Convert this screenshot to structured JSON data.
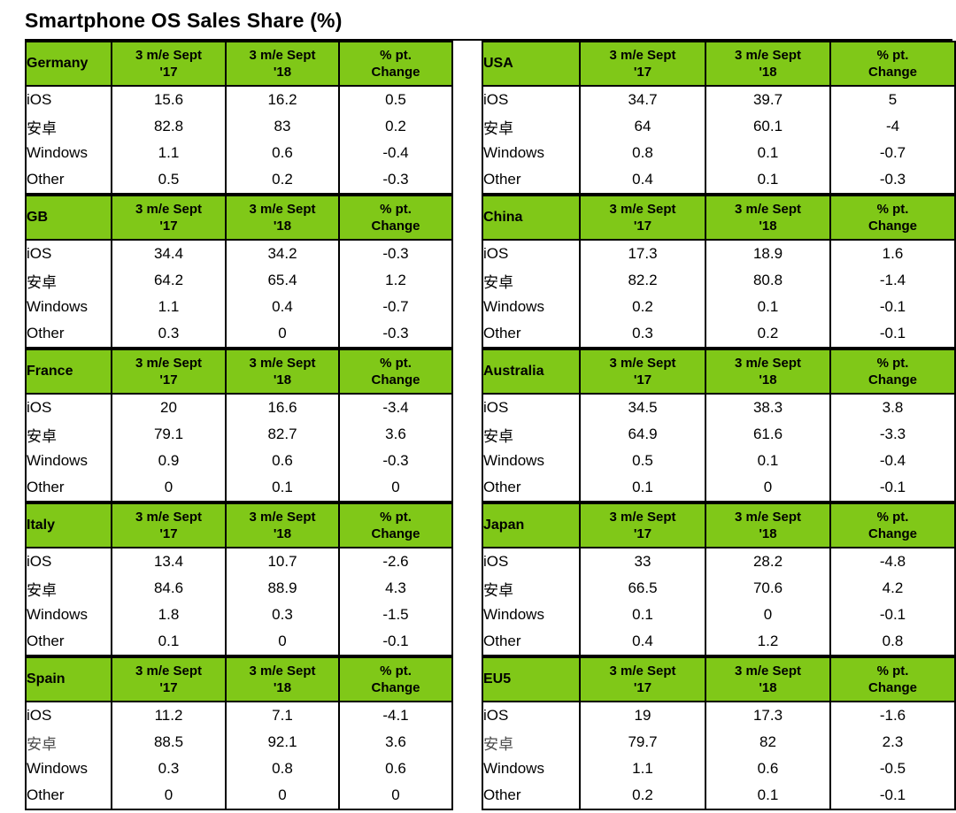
{
  "title": "Smartphone OS Sales Share (%)",
  "colors": {
    "header_green": "#80C818",
    "border": "#000000",
    "text": "#000000"
  },
  "column_headers": {
    "c17": "3 m/e Sept\n'17",
    "c18": "3 m/e Sept\n'18",
    "chg": "% pt.\nChange"
  },
  "sections": [
    {
      "country": "Germany",
      "side": "left",
      "rows": [
        {
          "os": "iOS",
          "y17": "15.6",
          "y18": "16.2",
          "change": "0.5"
        },
        {
          "os": "安卓",
          "y17": "82.8",
          "y18": "83",
          "change": "0.2"
        },
        {
          "os": "Windows",
          "y17": "1.1",
          "y18": "0.6",
          "change": "-0.4"
        },
        {
          "os": "Other",
          "y17": "0.5",
          "y18": "0.2",
          "change": "-0.3"
        }
      ]
    },
    {
      "country": "GB",
      "side": "left",
      "rows": [
        {
          "os": "iOS",
          "y17": "34.4",
          "y18": "34.2",
          "change": "-0.3"
        },
        {
          "os": "安卓",
          "y17": "64.2",
          "y18": "65.4",
          "change": "1.2"
        },
        {
          "os": "Windows",
          "y17": "1.1",
          "y18": "0.4",
          "change": "-0.7"
        },
        {
          "os": "Other",
          "y17": "0.3",
          "y18": "0",
          "change": "-0.3"
        }
      ]
    },
    {
      "country": "France",
      "side": "left",
      "rows": [
        {
          "os": "iOS",
          "y17": "20",
          "y18": "16.6",
          "change": "-3.4"
        },
        {
          "os": "安卓",
          "y17": "79.1",
          "y18": "82.7",
          "change": "3.6"
        },
        {
          "os": "Windows",
          "y17": "0.9",
          "y18": "0.6",
          "change": "-0.3"
        },
        {
          "os": "Other",
          "y17": "0",
          "y18": "0.1",
          "change": "0"
        }
      ]
    },
    {
      "country": "Italy",
      "side": "left",
      "rows": [
        {
          "os": "iOS",
          "y17": "13.4",
          "y18": "10.7",
          "change": "-2.6"
        },
        {
          "os": "安卓",
          "y17": "84.6",
          "y18": "88.9",
          "change": "4.3"
        },
        {
          "os": "Windows",
          "y17": "1.8",
          "y18": "0.3",
          "change": "-1.5"
        },
        {
          "os": "Other",
          "y17": "0.1",
          "y18": "0",
          "change": "-0.1"
        }
      ]
    },
    {
      "country": "Spain",
      "side": "left",
      "rows": [
        {
          "os": "iOS",
          "y17": "11.2",
          "y18": "7.1",
          "change": "-4.1"
        },
        {
          "os": "安卓",
          "y17": "88.5",
          "y18": "92.1",
          "change": "3.6",
          "os_muted": true
        },
        {
          "os": "Windows",
          "y17": "0.3",
          "y18": "0.8",
          "change": "0.6"
        },
        {
          "os": "Other",
          "y17": "0",
          "y18": "0",
          "change": "0"
        }
      ]
    },
    {
      "country": "USA",
      "side": "right",
      "rows": [
        {
          "os": "iOS",
          "y17": "34.7",
          "y18": "39.7",
          "change": "5"
        },
        {
          "os": "安卓",
          "y17": "64",
          "y18": "60.1",
          "change": "-4"
        },
        {
          "os": "Windows",
          "y17": "0.8",
          "y18": "0.1",
          "change": "-0.7"
        },
        {
          "os": "Other",
          "y17": "0.4",
          "y18": "0.1",
          "change": "-0.3"
        }
      ]
    },
    {
      "country": "China",
      "side": "right",
      "rows": [
        {
          "os": "iOS",
          "y17": "17.3",
          "y18": "18.9",
          "change": "1.6"
        },
        {
          "os": "安卓",
          "y17": "82.2",
          "y18": "80.8",
          "change": "-1.4"
        },
        {
          "os": "Windows",
          "y17": "0.2",
          "y18": "0.1",
          "change": "-0.1"
        },
        {
          "os": "Other",
          "y17": "0.3",
          "y18": "0.2",
          "change": "-0.1"
        }
      ]
    },
    {
      "country": "Australia",
      "side": "right",
      "rows": [
        {
          "os": "iOS",
          "y17": "34.5",
          "y18": "38.3",
          "change": "3.8"
        },
        {
          "os": "安卓",
          "y17": "64.9",
          "y18": "61.6",
          "change": "-3.3"
        },
        {
          "os": "Windows",
          "y17": "0.5",
          "y18": "0.1",
          "change": "-0.4"
        },
        {
          "os": "Other",
          "y17": "0.1",
          "y18": "0",
          "change": "-0.1"
        }
      ]
    },
    {
      "country": "Japan",
      "side": "right",
      "rows": [
        {
          "os": "iOS",
          "y17": "33",
          "y18": "28.2",
          "change": "-4.8"
        },
        {
          "os": "安卓",
          "y17": "66.5",
          "y18": "70.6",
          "change": "4.2"
        },
        {
          "os": "Windows",
          "y17": "0.1",
          "y18": "0",
          "change": "-0.1"
        },
        {
          "os": "Other",
          "y17": "0.4",
          "y18": "1.2",
          "change": "0.8"
        }
      ]
    },
    {
      "country": "EU5",
      "side": "right",
      "rows": [
        {
          "os": "iOS",
          "y17": "19",
          "y18": "17.3",
          "change": "-1.6"
        },
        {
          "os": "安卓",
          "y17": "79.7",
          "y18": "82",
          "change": "2.3",
          "os_muted": true
        },
        {
          "os": "Windows",
          "y17": "1.1",
          "y18": "0.6",
          "change": "-0.5"
        },
        {
          "os": "Other",
          "y17": "0.2",
          "y18": "0.1",
          "change": "-0.1"
        }
      ]
    }
  ],
  "chart_data": {
    "type": "table",
    "title": "Smartphone OS Sales Share (%)",
    "column_headers": [
      "3 m/e Sept '17",
      "3 m/e Sept '18",
      "% pt. Change"
    ],
    "row_labels": [
      "iOS",
      "安卓",
      "Windows",
      "Other"
    ],
    "tables": [
      {
        "region": "Germany",
        "values": [
          [
            15.6,
            16.2,
            0.5
          ],
          [
            82.8,
            83,
            0.2
          ],
          [
            1.1,
            0.6,
            -0.4
          ],
          [
            0.5,
            0.2,
            -0.3
          ]
        ]
      },
      {
        "region": "GB",
        "values": [
          [
            34.4,
            34.2,
            -0.3
          ],
          [
            64.2,
            65.4,
            1.2
          ],
          [
            1.1,
            0.4,
            -0.7
          ],
          [
            0.3,
            0,
            -0.3
          ]
        ]
      },
      {
        "region": "France",
        "values": [
          [
            20,
            16.6,
            -3.4
          ],
          [
            79.1,
            82.7,
            3.6
          ],
          [
            0.9,
            0.6,
            -0.3
          ],
          [
            0,
            0.1,
            0
          ]
        ]
      },
      {
        "region": "Italy",
        "values": [
          [
            13.4,
            10.7,
            -2.6
          ],
          [
            84.6,
            88.9,
            4.3
          ],
          [
            1.8,
            0.3,
            -1.5
          ],
          [
            0.1,
            0,
            -0.1
          ]
        ]
      },
      {
        "region": "Spain",
        "values": [
          [
            11.2,
            7.1,
            -4.1
          ],
          [
            88.5,
            92.1,
            3.6
          ],
          [
            0.3,
            0.8,
            0.6
          ],
          [
            0,
            0,
            0
          ]
        ]
      },
      {
        "region": "USA",
        "values": [
          [
            34.7,
            39.7,
            5
          ],
          [
            64,
            60.1,
            -4
          ],
          [
            0.8,
            0.1,
            -0.7
          ],
          [
            0.4,
            0.1,
            -0.3
          ]
        ]
      },
      {
        "region": "China",
        "values": [
          [
            17.3,
            18.9,
            1.6
          ],
          [
            82.2,
            80.8,
            -1.4
          ],
          [
            0.2,
            0.1,
            -0.1
          ],
          [
            0.3,
            0.2,
            -0.1
          ]
        ]
      },
      {
        "region": "Australia",
        "values": [
          [
            34.5,
            38.3,
            3.8
          ],
          [
            64.9,
            61.6,
            -3.3
          ],
          [
            0.5,
            0.1,
            -0.4
          ],
          [
            0.1,
            0,
            -0.1
          ]
        ]
      },
      {
        "region": "Japan",
        "values": [
          [
            33,
            28.2,
            -4.8
          ],
          [
            66.5,
            70.6,
            4.2
          ],
          [
            0.1,
            0,
            -0.1
          ],
          [
            0.4,
            1.2,
            0.8
          ]
        ]
      },
      {
        "region": "EU5",
        "values": [
          [
            19,
            17.3,
            -1.6
          ],
          [
            79.7,
            82,
            2.3
          ],
          [
            1.1,
            0.6,
            -0.5
          ],
          [
            0.2,
            0.1,
            -0.1
          ]
        ]
      }
    ]
  }
}
